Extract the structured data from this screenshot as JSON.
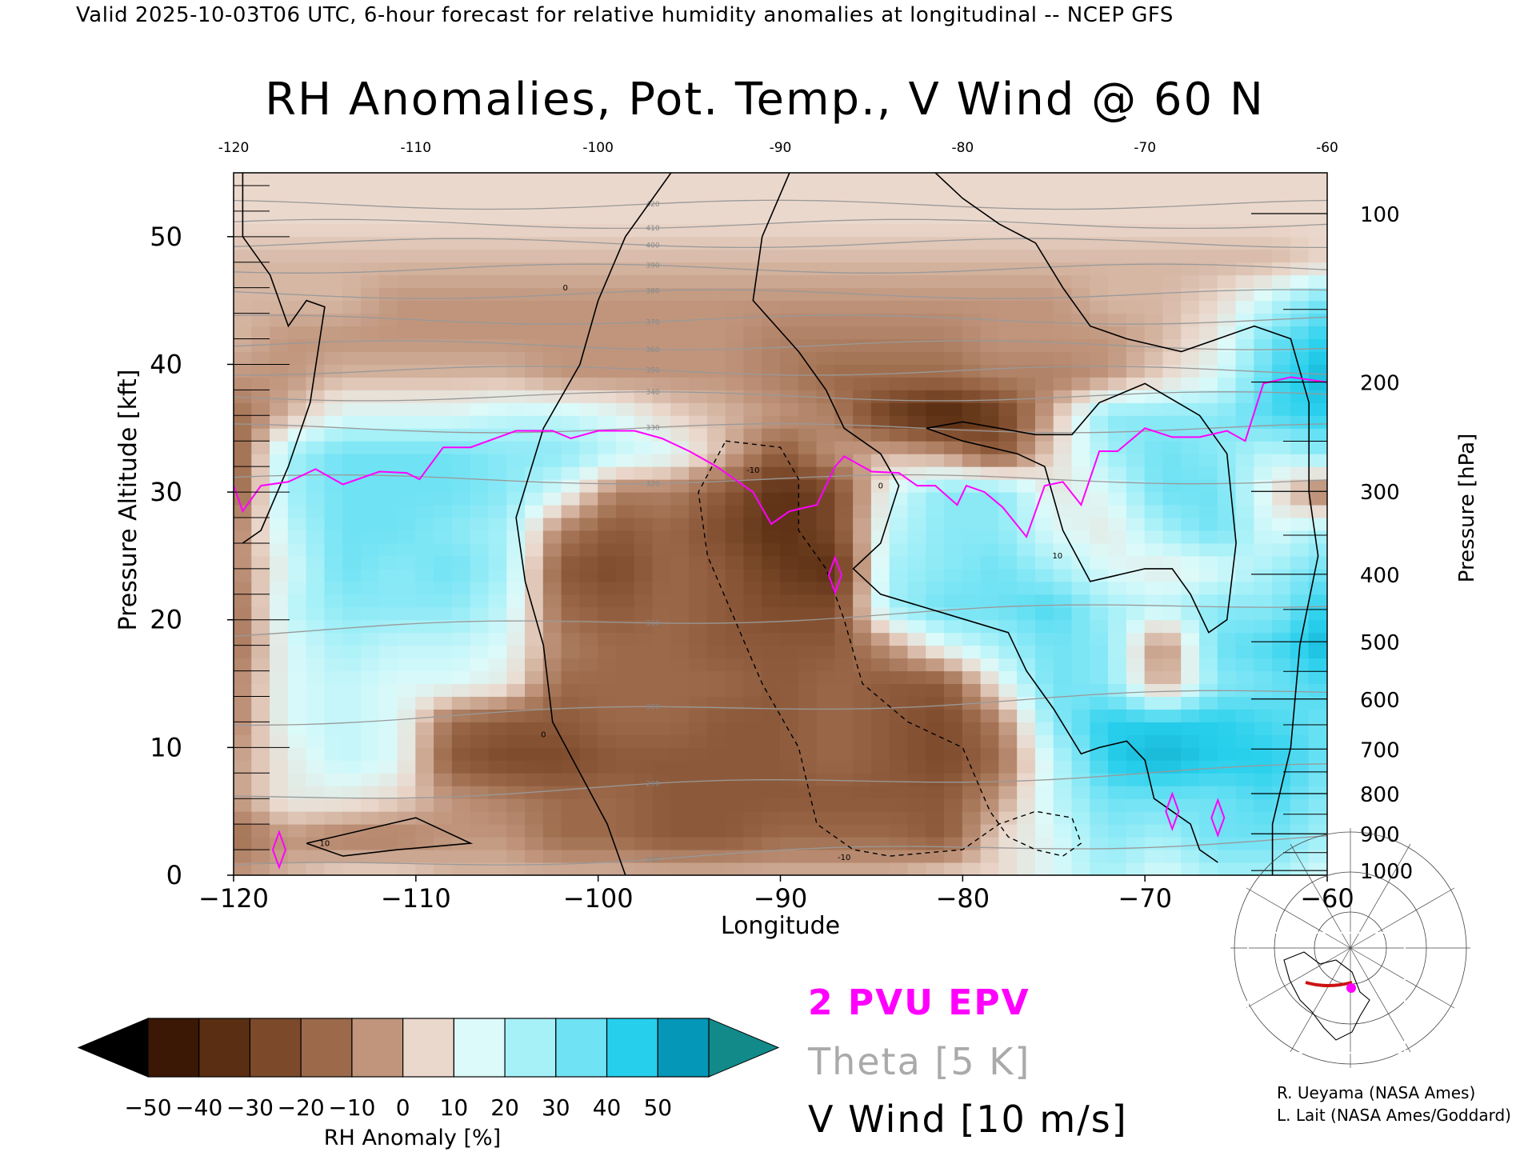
{
  "header": "Valid 2025-10-03T06 UTC, 6-hour forecast for relative humidity anomalies at longitudinal -- NCEP GFS",
  "title": "RH Anomalies, Pot. Temp., V Wind @ 60 N",
  "chart_data": {
    "type": "heatmap",
    "xlabel": "Longitude",
    "ylabel_left": "Pressure Altitude [kft]",
    "ylabel_right": "Pressure [hPa]",
    "xlim": [
      -120,
      -60
    ],
    "ylim": [
      0,
      55
    ],
    "x_ticks": [
      -120,
      -110,
      -100,
      -90,
      -80,
      -70,
      -60
    ],
    "x_tick_labels": [
      "−120",
      "−110",
      "−100",
      "−90",
      "−80",
      "−70",
      "−60"
    ],
    "top_tick_labels": [
      "-120",
      "-110",
      "-100",
      "-90",
      "-80",
      "-70",
      "-60"
    ],
    "y_ticks": [
      0,
      10,
      20,
      30,
      40,
      50
    ],
    "y_tick_labels": [
      "0",
      "10",
      "20",
      "30",
      "40",
      "50"
    ],
    "pressure_levels": [
      {
        "hpa": 100,
        "label": "100"
      },
      {
        "hpa": 200,
        "label": "200"
      },
      {
        "hpa": 300,
        "label": "300"
      },
      {
        "hpa": 400,
        "label": "400"
      },
      {
        "hpa": 500,
        "label": "500"
      },
      {
        "hpa": 600,
        "label": "600"
      },
      {
        "hpa": 700,
        "label": "700"
      },
      {
        "hpa": 800,
        "label": "800"
      },
      {
        "hpa": 900,
        "label": "900"
      },
      {
        "hpa": 1000,
        "label": "1000"
      }
    ],
    "x": [
      -120,
      -117,
      -114,
      -111,
      -108,
      -105,
      -102,
      -99,
      -96,
      -93,
      -90,
      -87,
      -84,
      -81,
      -78,
      -75,
      -72,
      -69,
      -66,
      -63,
      -60
    ],
    "y": [
      0,
      3,
      6,
      9,
      12,
      15,
      18,
      21,
      24,
      27,
      30,
      33,
      36,
      39,
      42,
      45,
      48,
      51,
      55
    ],
    "rh_anomaly": [
      [
        -10,
        -5,
        0,
        0,
        -5,
        -5,
        -5,
        -5,
        -5,
        -5,
        -5,
        -5,
        -5,
        0,
        0,
        10,
        20,
        10,
        20,
        20,
        10
      ],
      [
        -20,
        -10,
        -15,
        -15,
        -10,
        -10,
        -20,
        -20,
        -25,
        -25,
        -20,
        -20,
        -20,
        -25,
        0,
        10,
        25,
        20,
        30,
        30,
        20
      ],
      [
        -10,
        5,
        5,
        0,
        -10,
        -15,
        -20,
        -20,
        -25,
        -25,
        -25,
        -25,
        -25,
        -25,
        -10,
        15,
        30,
        30,
        30,
        35,
        25
      ],
      [
        -10,
        5,
        15,
        10,
        -25,
        -30,
        -30,
        -25,
        -25,
        -25,
        -25,
        -20,
        -25,
        -30,
        -20,
        15,
        40,
        45,
        40,
        40,
        30
      ],
      [
        -15,
        10,
        15,
        10,
        -20,
        -25,
        -25,
        -20,
        -20,
        -25,
        -25,
        -20,
        -25,
        -30,
        -15,
        25,
        40,
        40,
        40,
        35,
        30
      ],
      [
        -15,
        10,
        15,
        10,
        10,
        5,
        -20,
        -20,
        -20,
        -20,
        -25,
        -20,
        -25,
        -25,
        5,
        30,
        25,
        -10,
        25,
        30,
        35
      ],
      [
        -20,
        10,
        20,
        15,
        15,
        10,
        -15,
        -20,
        -20,
        -25,
        -25,
        -25,
        -10,
        10,
        20,
        30,
        25,
        -15,
        30,
        35,
        45
      ],
      [
        -20,
        15,
        25,
        25,
        25,
        15,
        -20,
        -25,
        -20,
        -25,
        -30,
        -30,
        20,
        30,
        30,
        35,
        20,
        15,
        25,
        25,
        40
      ],
      [
        -15,
        10,
        30,
        25,
        30,
        20,
        -25,
        -30,
        -20,
        -25,
        -35,
        -40,
        20,
        25,
        30,
        20,
        10,
        5,
        10,
        20,
        30
      ],
      [
        -15,
        15,
        30,
        30,
        25,
        20,
        -15,
        -25,
        -20,
        -30,
        -40,
        -30,
        15,
        25,
        25,
        10,
        5,
        20,
        30,
        10,
        20
      ],
      [
        -25,
        20,
        30,
        30,
        30,
        25,
        10,
        -15,
        -15,
        -25,
        -40,
        -30,
        10,
        25,
        25,
        5,
        10,
        30,
        30,
        5,
        -20
      ],
      [
        -25,
        20,
        30,
        30,
        30,
        25,
        25,
        15,
        10,
        -5,
        -25,
        -10,
        -5,
        -10,
        -25,
        0,
        20,
        30,
        25,
        15,
        25
      ],
      [
        -20,
        -5,
        10,
        10,
        10,
        15,
        15,
        10,
        0,
        -5,
        -10,
        -15,
        -35,
        -45,
        -35,
        -5,
        25,
        25,
        25,
        35,
        40
      ],
      [
        -10,
        -10,
        -5,
        -5,
        -5,
        -5,
        -10,
        -10,
        -10,
        -10,
        -15,
        -20,
        -20,
        -20,
        -15,
        -15,
        -10,
        0,
        10,
        35,
        45
      ],
      [
        -5,
        -10,
        -10,
        -10,
        -10,
        -10,
        -10,
        -10,
        -10,
        -10,
        -15,
        -15,
        -15,
        -15,
        -10,
        -10,
        -10,
        -5,
        5,
        30,
        40
      ],
      [
        -5,
        -5,
        -5,
        -10,
        -10,
        -10,
        -10,
        -10,
        -10,
        -10,
        -10,
        -10,
        -10,
        -10,
        -10,
        -10,
        -5,
        -5,
        0,
        15,
        30
      ],
      [
        -5,
        -5,
        -5,
        -5,
        -5,
        -5,
        -5,
        -5,
        -5,
        -5,
        -5,
        -5,
        -5,
        -5,
        -5,
        -5,
        -5,
        -5,
        -5,
        -5,
        0
      ],
      [
        0,
        0,
        0,
        0,
        0,
        0,
        0,
        0,
        0,
        0,
        0,
        0,
        0,
        0,
        0,
        0,
        0,
        0,
        0,
        0,
        0
      ],
      [
        0,
        0,
        0,
        0,
        0,
        0,
        0,
        0,
        0,
        0,
        0,
        0,
        0,
        0,
        0,
        0,
        0,
        0,
        0,
        0,
        0
      ]
    ],
    "theta_label": "Theta [5 K]",
    "theta_contour_labels": [
      "280",
      "290",
      "300",
      "310",
      "320",
      "330",
      "340",
      "350",
      "360",
      "370",
      "380",
      "390",
      "400",
      "410",
      "420"
    ],
    "theta_levels": [
      {
        "K": 280,
        "y": 1.5
      },
      {
        "K": 290,
        "y": 7
      },
      {
        "K": 300,
        "y": 13
      },
      {
        "K": 310,
        "y": 20
      },
      {
        "K": 320,
        "y": 31
      },
      {
        "K": 330,
        "y": 35
      },
      {
        "K": 340,
        "y": 37.5
      },
      {
        "K": 350,
        "y": 39.5
      },
      {
        "K": 360,
        "y": 41.5
      },
      {
        "K": 370,
        "y": 43.5
      },
      {
        "K": 380,
        "y": 45.5
      },
      {
        "K": 390,
        "y": 47.5
      },
      {
        "K": 400,
        "y": 49.5
      },
      {
        "K": 410,
        "y": 51
      },
      {
        "K": 420,
        "y": 52.5
      }
    ],
    "epv_2pvu": {
      "label": "2 PVU EPV",
      "color": "#ff00ff",
      "points": [
        [
          -120,
          30.5
        ],
        [
          -119.5,
          28.5
        ],
        [
          -118.5,
          30.5
        ],
        [
          -117,
          30.8
        ],
        [
          -115.5,
          31.8
        ],
        [
          -114,
          30.6
        ],
        [
          -112,
          31.6
        ],
        [
          -110.5,
          31.5
        ],
        [
          -109.8,
          31
        ],
        [
          -108.5,
          33.5
        ],
        [
          -107,
          33.5
        ],
        [
          -104.5,
          34.8
        ],
        [
          -102.5,
          34.8
        ],
        [
          -101.5,
          34.2
        ],
        [
          -100,
          34.8
        ],
        [
          -98,
          34.8
        ],
        [
          -96.5,
          34.2
        ],
        [
          -95,
          33.2
        ],
        [
          -93.5,
          32
        ],
        [
          -91.5,
          30
        ],
        [
          -90.5,
          27.5
        ],
        [
          -89.5,
          28.5
        ],
        [
          -88,
          29
        ],
        [
          -87,
          32
        ],
        [
          -86.5,
          32.8
        ],
        [
          -85,
          31.6
        ],
        [
          -83.5,
          31.5
        ],
        [
          -82.5,
          30.5
        ],
        [
          -81.5,
          30.5
        ],
        [
          -80.3,
          29
        ],
        [
          -79.8,
          30.5
        ],
        [
          -78.8,
          30
        ],
        [
          -77.8,
          28.8
        ],
        [
          -76.5,
          26.5
        ],
        [
          -75.5,
          30.5
        ],
        [
          -74.5,
          30.8
        ],
        [
          -73.5,
          29
        ],
        [
          -72.5,
          33.2
        ],
        [
          -71.5,
          33.2
        ],
        [
          -70,
          35
        ],
        [
          -68.5,
          34.3
        ],
        [
          -67,
          34.3
        ],
        [
          -65.5,
          34.8
        ],
        [
          -64.5,
          34
        ],
        [
          -63.5,
          38.5
        ],
        [
          -62,
          39
        ],
        [
          -61,
          38.8
        ],
        [
          -60,
          38.6
        ]
      ]
    },
    "v_wind_label": "V Wind [10 m/s]",
    "v_wind_contour_labels": [
      "0",
      "10",
      "-10"
    ]
  },
  "colorbar": {
    "label": "RH Anomaly [%]",
    "tick_labels": [
      "−50",
      "−40",
      "−30",
      "−20",
      "−10",
      "0",
      "10",
      "20",
      "30",
      "40",
      "50"
    ],
    "colors": [
      "#3a1805",
      "#5a2e12",
      "#7c4a2b",
      "#9c6a4b",
      "#c0957c",
      "#ebd8cc",
      "#dcfafa",
      "#a6f0f8",
      "#6fe2f4",
      "#26cfec",
      "#0497b8"
    ],
    "underflow_color": "#000000",
    "overflow_color": "#128a8a"
  },
  "legend": {
    "epv": "2 PVU EPV",
    "theta": "Theta [5 K]",
    "vwind": "V Wind [10 m/s]"
  },
  "credits": {
    "line1": "R. Ueyama (NASA Ames)",
    "line2": "L. Lait (NASA Ames/Goddard)"
  }
}
